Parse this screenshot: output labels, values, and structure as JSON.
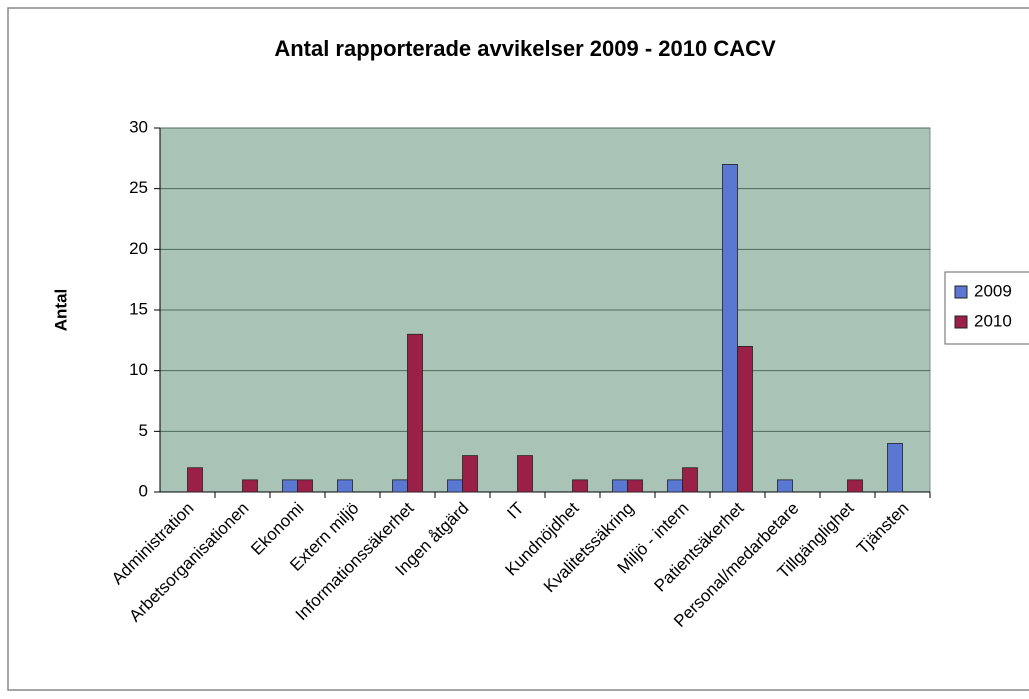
{
  "chart_data": {
    "type": "bar",
    "title": "Antal rapporterade avvikelser 2009 - 2010 CACV",
    "y_label": "Antal",
    "categories": [
      "Administration",
      "Arbetsorganisationen",
      "Ekonomi",
      "Extern miljö",
      "Informationssäkerhet",
      "Ingen åtgärd",
      "IT",
      "Kundnöjdhet",
      "Kvalitetssäkring",
      "Miljö - intern",
      "Patientsäkerhet",
      "Personal/medarbetare",
      "Tillgänglighet",
      "Tjänsten"
    ],
    "series": [
      {
        "name": "2009",
        "color": "#5a78d2",
        "values": [
          0,
          0,
          1,
          1,
          1,
          1,
          0,
          0,
          1,
          1,
          27,
          1,
          0,
          4
        ]
      },
      {
        "name": "2010",
        "color": "#9a2048",
        "values": [
          2,
          1,
          1,
          0,
          13,
          3,
          3,
          1,
          1,
          2,
          12,
          0,
          1,
          0
        ]
      }
    ],
    "ylim": [
      0,
      30
    ],
    "yticks": [
      0,
      5,
      10,
      15,
      20,
      25,
      30
    ],
    "grid": true,
    "legend": "right"
  }
}
